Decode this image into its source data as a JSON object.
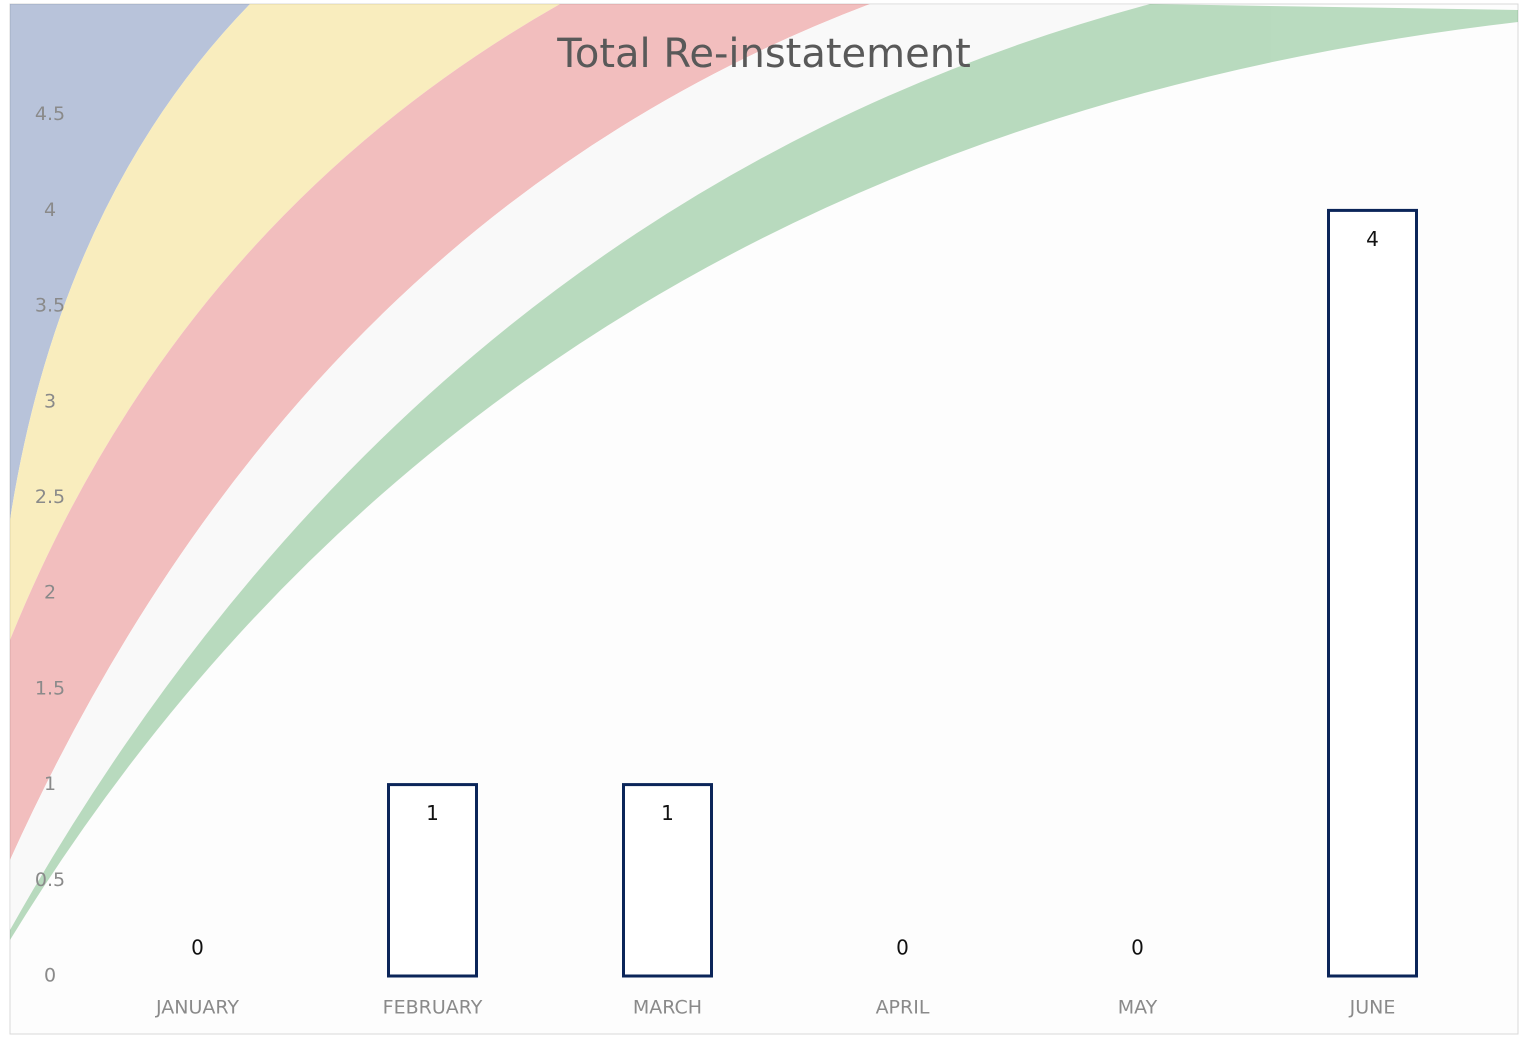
{
  "chart_data": {
    "type": "bar",
    "title": "Total Re-instatement",
    "categories": [
      "JANUARY",
      "FEBRUARY",
      "MARCH",
      "APRIL",
      "MAY",
      "JUNE"
    ],
    "values": [
      0,
      1,
      1,
      0,
      0,
      4
    ],
    "color": "#0b2559",
    "ylim": [
      0,
      5
    ],
    "yticks": [
      0,
      0.5,
      1,
      1.5,
      2,
      2.5,
      3,
      3.5,
      4,
      4.5
    ],
    "grid": false
  }
}
